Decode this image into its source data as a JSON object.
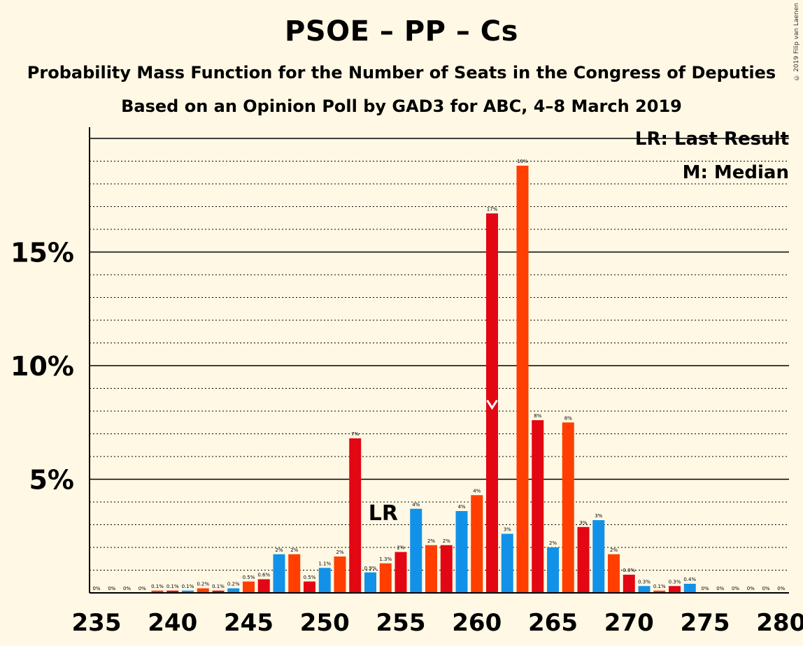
{
  "header": {
    "title": "PSOE – PP – Cs",
    "subtitle": "Probability Mass Function for the Number of Seats in the Congress of Deputies",
    "subtitle2": "Based on an Opinion Poll by GAD3 for ABC, 4–8 March 2019",
    "copyright": "© 2019 Filip van Laenen"
  },
  "legend": {
    "lr": "LR: Last Result",
    "m": "M: Median"
  },
  "chart_data": {
    "type": "bar",
    "x": [
      235,
      236,
      237,
      238,
      239,
      240,
      241,
      242,
      243,
      244,
      245,
      246,
      247,
      248,
      249,
      250,
      251,
      252,
      253,
      254,
      255,
      256,
      257,
      258,
      259,
      260,
      261,
      262,
      263,
      264,
      265,
      266,
      267,
      268,
      269,
      270,
      271,
      272,
      273,
      274,
      275,
      276,
      277,
      278,
      279,
      280
    ],
    "values": [
      0,
      0,
      0,
      0,
      0.1,
      0.1,
      0.1,
      0.2,
      0.1,
      0.2,
      0.5,
      0.6,
      1.7,
      1.7,
      0.5,
      1.1,
      1.6,
      6.8,
      0.9,
      1.3,
      1.8,
      3.7,
      2.1,
      2.1,
      3.6,
      4.3,
      16.7,
      2.6,
      18.8,
      7.6,
      2.0,
      7.5,
      2.9,
      3.2,
      1.7,
      0.8,
      0.3,
      0.1,
      0.3,
      0.4,
      0,
      0,
      0,
      0,
      0,
      0
    ],
    "labels": [
      "0%",
      "0%",
      "0%",
      "0%",
      "0.1%",
      "0.1%",
      "0.1%",
      "0.2%",
      "0.1%",
      "0.2%",
      "0.5%",
      "0.6%",
      "2%",
      "2%",
      "0.5%",
      "1.1%",
      "2%",
      "7%",
      "0.9%",
      "1.3%",
      "2%",
      "4%",
      "2%",
      "2%",
      "4%",
      "4%",
      "17%",
      "3%",
      "19%",
      "8%",
      "2%",
      "8%",
      "3%",
      "3%",
      "2%",
      "0.8%",
      "0.3%",
      "0.1%",
      "0.3%",
      "0.4%",
      "0%",
      "0%",
      "0%",
      "0%",
      "0%",
      "0%"
    ],
    "colors": [
      "#1192E8",
      "#FF3E00",
      "#E30613"
    ],
    "x_ticks": [
      "235",
      "240",
      "245",
      "250",
      "255",
      "260",
      "265",
      "270",
      "275",
      "280"
    ],
    "y_ticks": [
      "5%",
      "10%",
      "15%"
    ],
    "ylim": [
      0,
      20
    ],
    "last_result_seat": 255,
    "last_result_label": "LR",
    "median_seat": 261,
    "median_marker": "M"
  }
}
